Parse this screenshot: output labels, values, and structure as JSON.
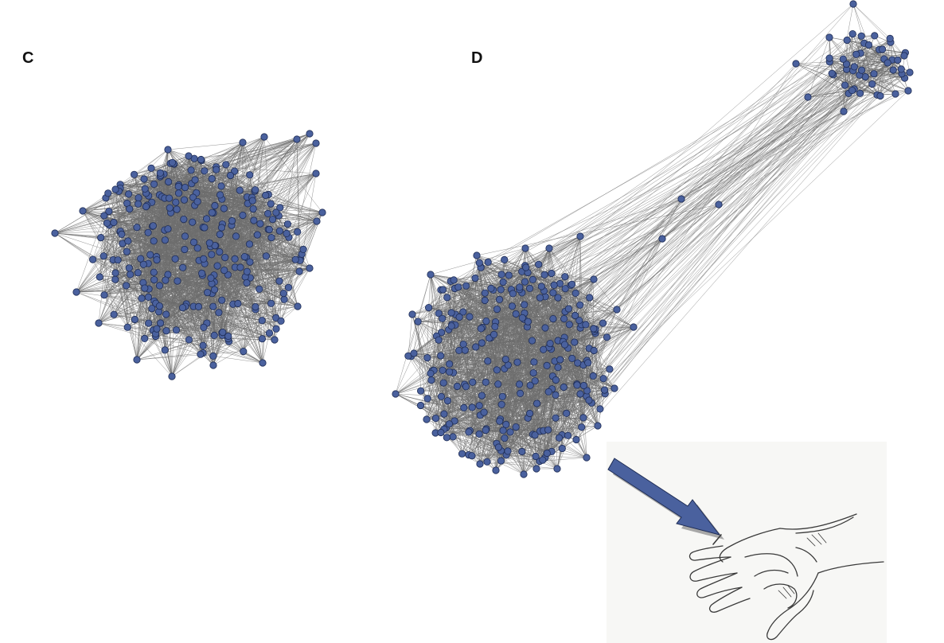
{
  "panels": [
    {
      "label": "C"
    },
    {
      "label": "D"
    }
  ],
  "colors": {
    "node_fill": "#4a619e",
    "node_stroke": "#1f2d55",
    "edge": "#6e6e6e",
    "arrow_fill": "#4a619e",
    "arrow_shadow": "#9a9a9a",
    "hand_background": "#f7f7f5",
    "hand_lines": "#3a3a3a"
  },
  "illustration": {
    "arrow_icon": "arrow-down-right-icon",
    "hand_icon": "open-hand-sketch-icon"
  }
}
